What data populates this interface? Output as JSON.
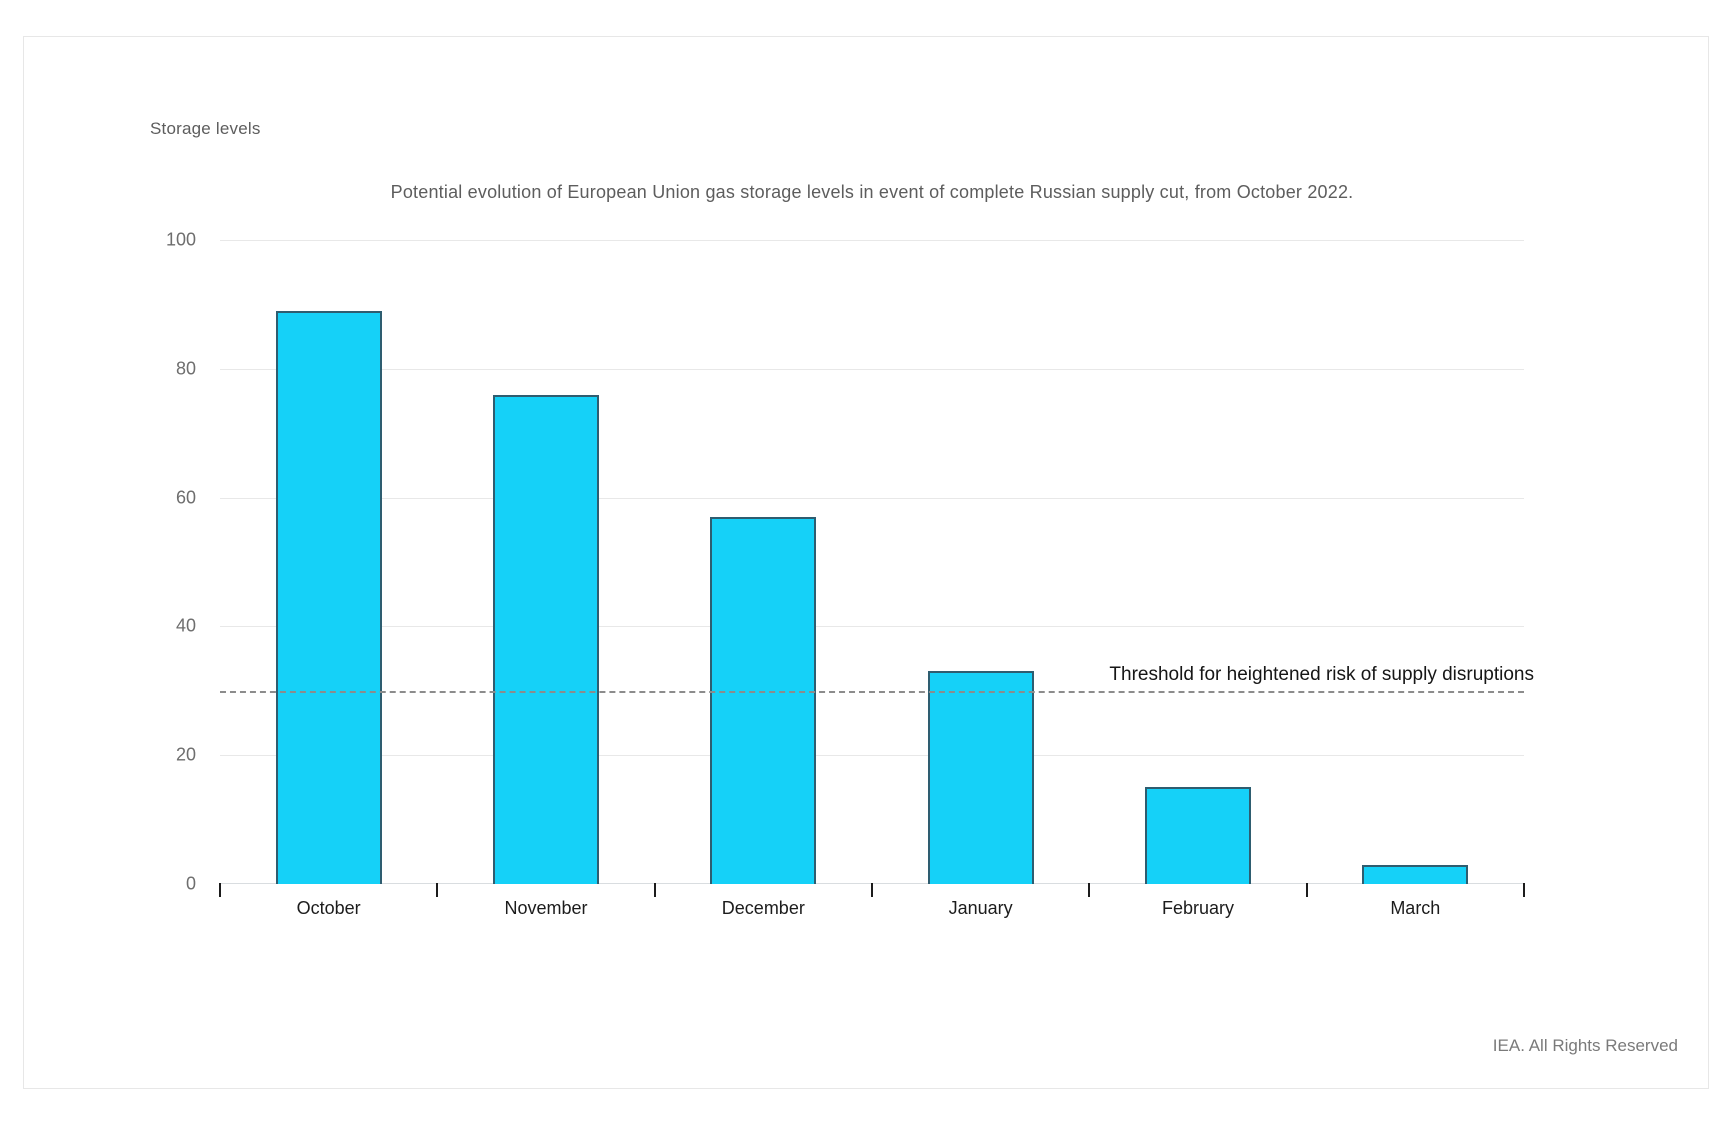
{
  "window": {
    "footer_credit": "IEA. All Rights Reserved"
  },
  "chart_data": {
    "type": "bar",
    "title": "Potential evolution of European Union gas storage levels in event of complete Russian supply cut, from October 2022.",
    "axis_title": "Storage levels",
    "categories": [
      "October",
      "November",
      "December",
      "January",
      "February",
      "March"
    ],
    "values": [
      89,
      76,
      57,
      33,
      15,
      3
    ],
    "ylim": [
      0,
      100
    ],
    "yticks": [
      0,
      20,
      40,
      60,
      80,
      100
    ],
    "grid": true,
    "threshold": {
      "value": 30,
      "label": "Threshold for heightened risk of supply disruptions"
    },
    "colors": {
      "bar_fill": "#15d1f8",
      "bar_border": "#2e5d70",
      "gridline": "#e8e8e8",
      "baseline": "#d9dde0",
      "threshold_line": "#8c8c8c",
      "axis_text": "#6e6e6e",
      "category_text": "#1c1c1c",
      "title_text": "#5d5d5d"
    },
    "legend": null
  }
}
